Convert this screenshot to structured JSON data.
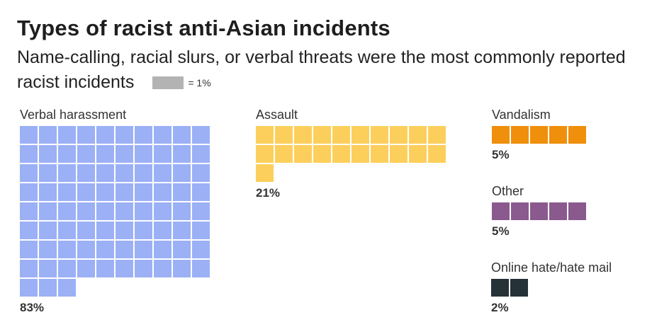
{
  "title": "Types of racist anti-Asian incidents",
  "subtitle": "Name-calling, racial slurs, or verbal threats were the most commonly reported racist incidents",
  "legend": {
    "label": "= 1%",
    "color": "#b3b3b3"
  },
  "chart_data": {
    "type": "waffle",
    "unit": "1%",
    "title": "Types of racist anti-Asian incidents",
    "categories": [
      {
        "name": "Verbal harassment",
        "value": 83,
        "value_label": "83%",
        "color": "#9bb0f5"
      },
      {
        "name": "Assault",
        "value": 21,
        "value_label": "21%",
        "color": "#fccf5c"
      },
      {
        "name": "Vandalism",
        "value": 5,
        "value_label": "5%",
        "color": "#ef8f0c"
      },
      {
        "name": "Other",
        "value": 5,
        "value_label": "5%",
        "color": "#8a5a8e"
      },
      {
        "name": "Online hate/hate mail",
        "value": 2,
        "value_label": "2%",
        "color": "#253238"
      }
    ]
  }
}
